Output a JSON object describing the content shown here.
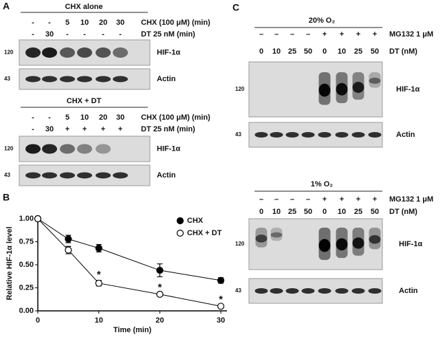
{
  "panel_a": {
    "label": "A",
    "blots": [
      {
        "title": "CHX alone",
        "rows": [
          {
            "label": "CHX (100 μM) (min)",
            "cells": [
              "-",
              "-",
              "5",
              "10",
              "20",
              "30"
            ]
          },
          {
            "label": "DT 25 nM (min)",
            "cells": [
              "-",
              "30",
              "-",
              "-",
              "-",
              "-"
            ]
          }
        ],
        "markers": [
          {
            "size": "120",
            "protein": "HIF-1α"
          },
          {
            "size": "43",
            "protein": "Actin"
          }
        ]
      },
      {
        "title": "CHX + DT",
        "rows": [
          {
            "label": "CHX (100 μM) (min)",
            "cells": [
              "-",
              "-",
              "5",
              "10",
              "20",
              "30"
            ]
          },
          {
            "label": "DT 25 nM (min)",
            "cells": [
              "-",
              "30",
              "+",
              "+",
              "+",
              "+"
            ]
          }
        ],
        "markers": [
          {
            "size": "120",
            "protein": "HIF-1α"
          },
          {
            "size": "43",
            "protein": "Actin"
          }
        ]
      }
    ]
  },
  "panel_b": {
    "label": "B"
  },
  "chart_data": {
    "type": "line",
    "x_label": "Time (min)",
    "y_label": "Relative HIF-1α level",
    "x": [
      0,
      5,
      10,
      20,
      30
    ],
    "series": [
      {
        "name": "CHX",
        "color": "#000000",
        "fill": "#000000",
        "values": [
          1.0,
          0.78,
          0.68,
          0.44,
          0.33
        ],
        "errors": [
          0,
          0.04,
          0.04,
          0.07,
          0.03
        ]
      },
      {
        "name": "CHX + DT",
        "color": "#000000",
        "fill": "#ffffff",
        "values": [
          1.0,
          0.66,
          0.3,
          0.18,
          0.05
        ],
        "errors": [
          0,
          0.04,
          0.03,
          0.01,
          0.01
        ]
      }
    ],
    "annotations": [
      {
        "text": "*",
        "x": 10
      },
      {
        "text": "*",
        "x": 20
      },
      {
        "text": "*",
        "x": 30
      }
    ],
    "xlim": [
      0,
      31
    ],
    "ylim": [
      0,
      1.03
    ],
    "xticks": [
      0,
      10,
      20,
      30
    ],
    "yticks": [
      {
        "value": 0,
        "label": "0.00"
      },
      {
        "value": 0.25,
        "label": "0.25"
      },
      {
        "value": 0.5,
        "label": "0.50"
      },
      {
        "value": 0.75,
        "label": "0.75"
      },
      {
        "value": 1,
        "label": "1.00"
      }
    ],
    "grid": false,
    "legend": "top-right"
  },
  "panel_c": {
    "label": "C",
    "blots": [
      {
        "title": "20% O₂",
        "rows": [
          {
            "label": "MG132 1 μM",
            "cells": [
              "–",
              "–",
              "–",
              "–",
              "+",
              "+",
              "+",
              "+"
            ]
          },
          {
            "label": "DT (nM)",
            "cells": [
              "0",
              "10",
              "25",
              "50",
              "0",
              "10",
              "25",
              "50"
            ]
          }
        ],
        "markers": [
          {
            "size": "120",
            "protein": "HIF-1α"
          },
          {
            "size": "43",
            "protein": "Actin"
          }
        ]
      },
      {
        "title": "1% O₂",
        "rows": [
          {
            "label": "MG132 1 μM",
            "cells": [
              "–",
              "–",
              "–",
              "–",
              "+",
              "+",
              "+",
              "+"
            ]
          },
          {
            "label": "DT (nM)",
            "cells": [
              "0",
              "10",
              "25",
              "50",
              "0",
              "10",
              "25",
              "50"
            ]
          }
        ],
        "markers": [
          {
            "size": "120",
            "protein": "HIF-1α"
          },
          {
            "size": "43",
            "protein": "Actin"
          }
        ]
      }
    ]
  }
}
